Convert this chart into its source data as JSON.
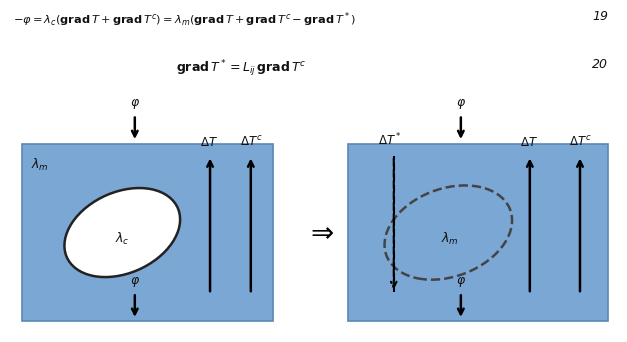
{
  "bg_color": "#ffffff",
  "box_color": "#7ba7d4",
  "box_edge_color": "#5a87b4",
  "ellipse_fill_solid": "#ffffff",
  "ellipse_edge_solid": "#222222",
  "ellipse_edge_dashed": "#444444",
  "arrow_color": "#111111",
  "text_color": "#111111",
  "eq19_text": "$-\\varphi = \\lambda_c(\\mathbf{grad}\\, T + \\mathbf{grad}\\, T^c) = \\lambda_m(\\mathbf{grad}\\, T + \\mathbf{grad}\\, T^c - \\mathbf{grad}\\, T^*)$",
  "eq19_num": "19",
  "eq20_text": "$\\mathbf{grad}\\, T^* = L_{ij}\\, \\mathbf{grad}\\, T^c$",
  "eq20_num": "20",
  "arrow_lw": 1.8
}
